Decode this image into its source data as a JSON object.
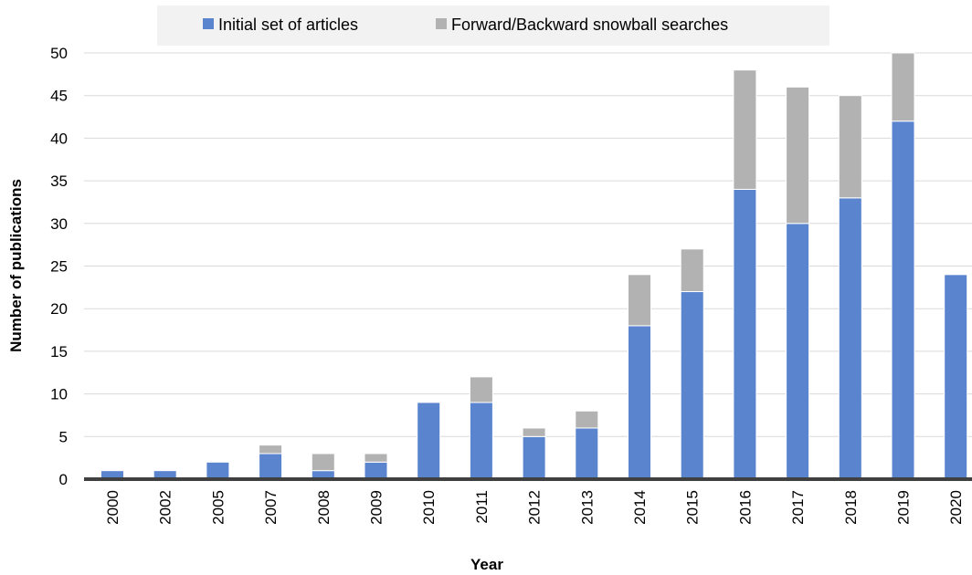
{
  "colors": {
    "initial": "#5b84cf",
    "snowball": "#b2b2b2",
    "gridline": "#d9d9d9",
    "axis": "#404040",
    "legend_bg": "#f2f2f2"
  },
  "chart_data": {
    "type": "bar",
    "stacked": true,
    "categories": [
      "2000",
      "2002",
      "2005",
      "2007",
      "2008",
      "2009",
      "2010",
      "2011",
      "2012",
      "2013",
      "2014",
      "2015",
      "2016",
      "2017",
      "2018",
      "2019",
      "2020"
    ],
    "series": [
      {
        "name": "Initial set of articles",
        "values": [
          1,
          1,
          2,
          3,
          1,
          2,
          9,
          9,
          5,
          6,
          18,
          22,
          34,
          30,
          33,
          42,
          24
        ]
      },
      {
        "name": "Forward/Backward snowball searches",
        "values": [
          0,
          0,
          0,
          1,
          2,
          1,
          0,
          3,
          1,
          2,
          6,
          5,
          14,
          16,
          12,
          8,
          0
        ]
      }
    ],
    "xlabel": "Year",
    "ylabel": "Number of publications",
    "ylim": [
      0,
      50
    ],
    "yticks": [
      0,
      5,
      10,
      15,
      20,
      25,
      30,
      35,
      40,
      45,
      50
    ],
    "grid": true,
    "legend_position": "top"
  }
}
